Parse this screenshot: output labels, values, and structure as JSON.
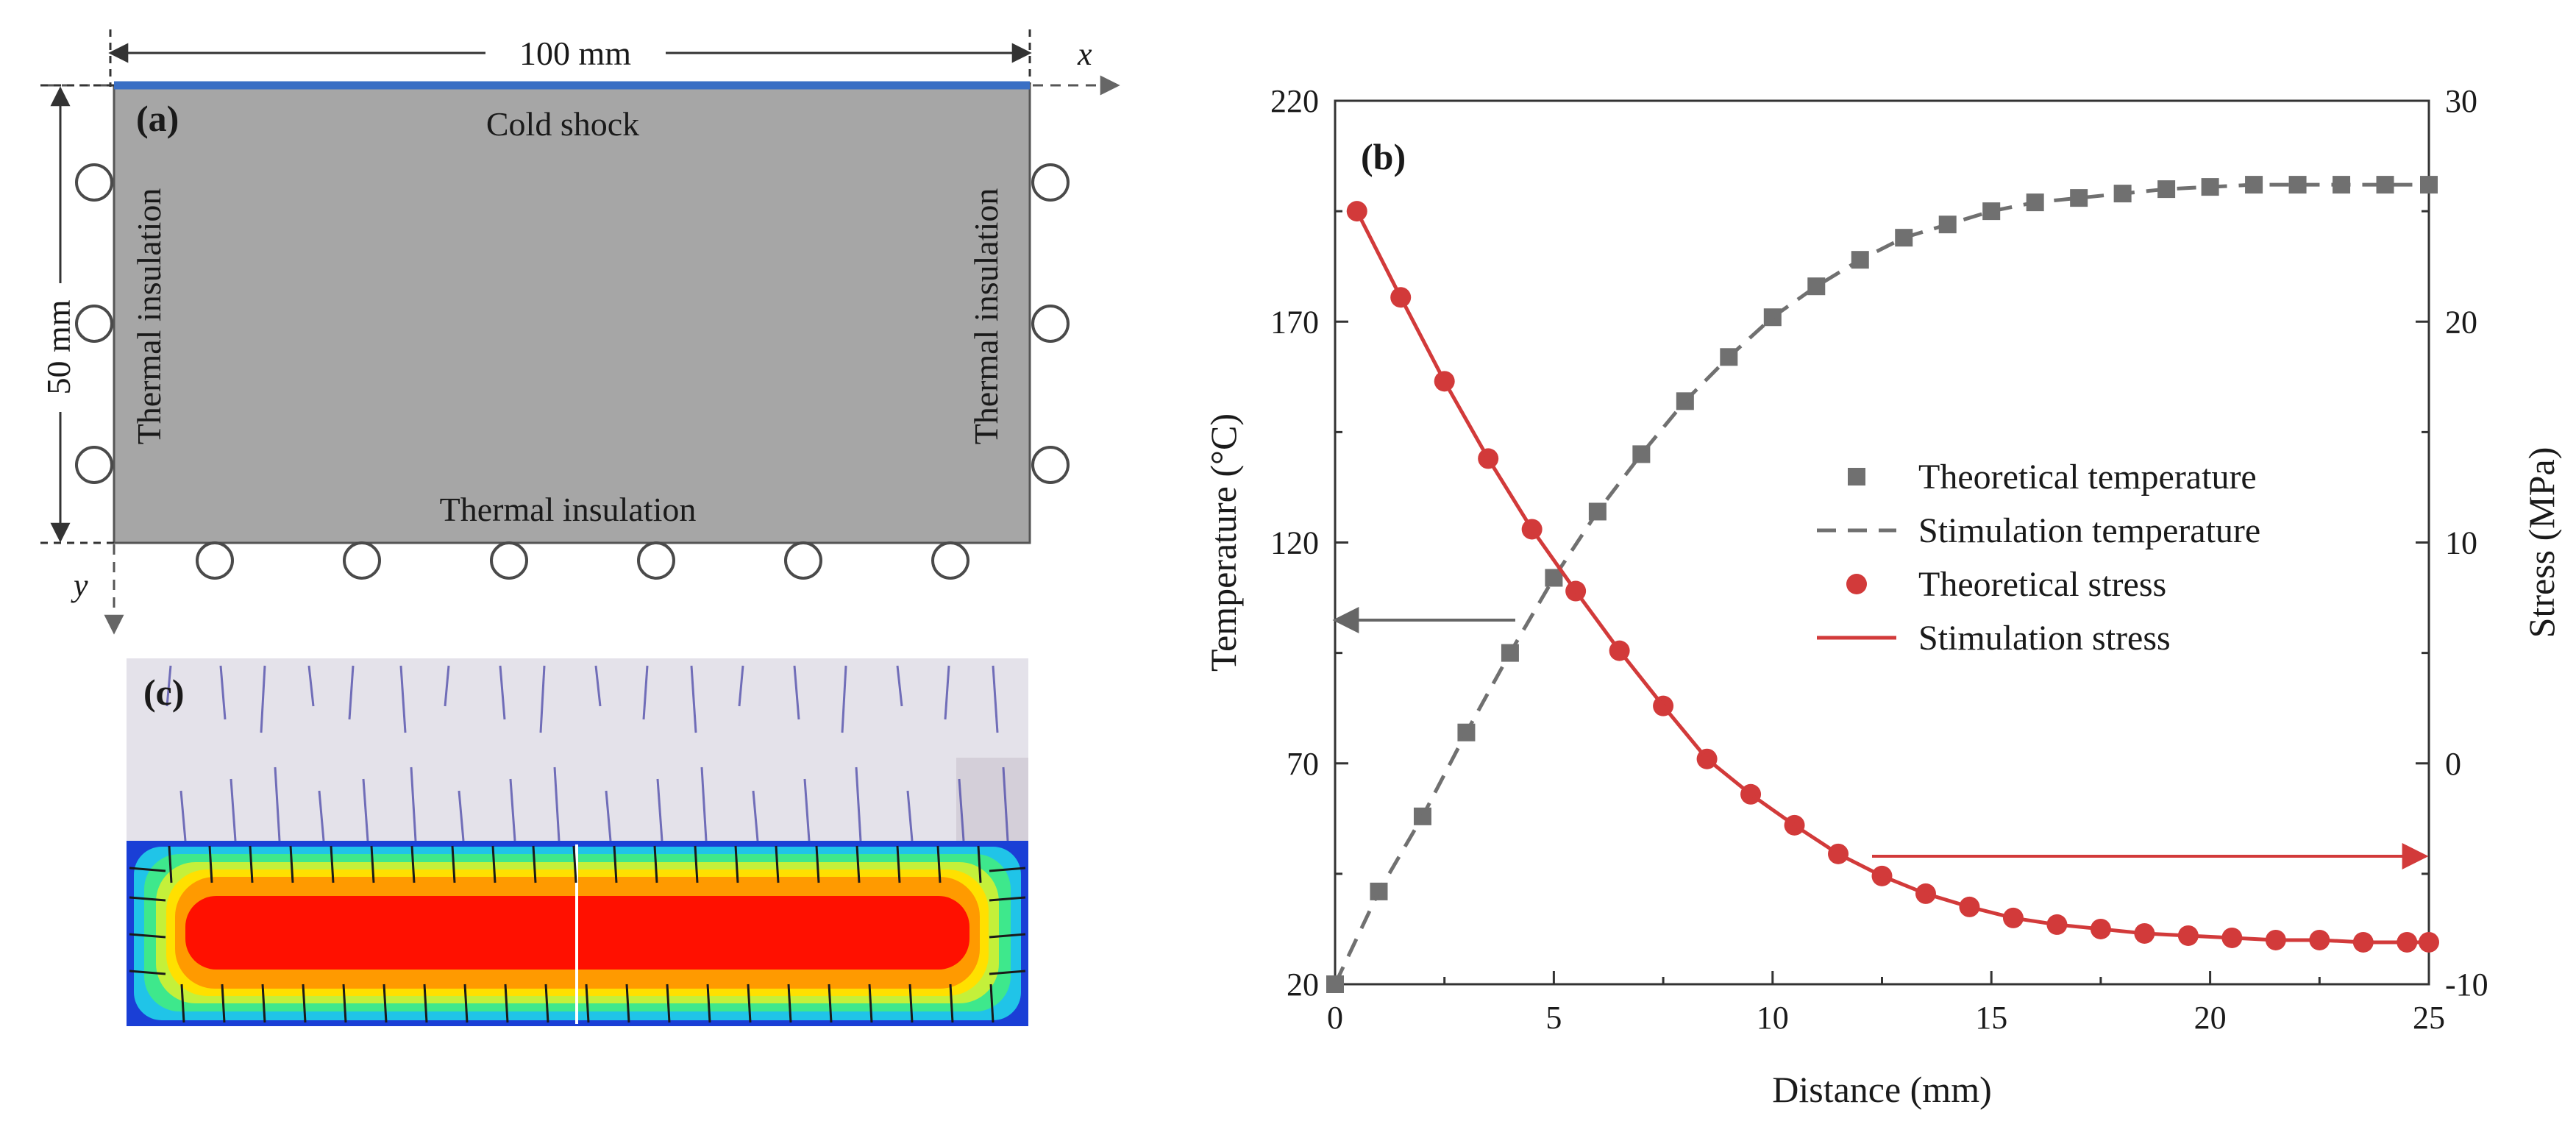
{
  "panel_a": {
    "label": "(a)",
    "width_label": "100 mm",
    "height_label": "50 mm",
    "x_axis": "x",
    "y_axis": "y",
    "top_boundary": "Cold shock",
    "left_boundary": "Thermal insulation",
    "right_boundary": "Thermal insulation",
    "bottom_boundary": "Thermal insulation",
    "cold_edge_color": "#3a6fc4",
    "body_color": "#a6a6a6"
  },
  "panel_c": {
    "label": "(c)"
  },
  "chart_data": {
    "type": "scatter",
    "panel_label": "(b)",
    "xlabel": "Distance (mm)",
    "ylabel_left": "Temperature (°C)",
    "ylabel_right": "Stress (MPa)",
    "xlim": [
      0,
      25
    ],
    "ylim_left": [
      20,
      220
    ],
    "ylim_right": [
      -10,
      30
    ],
    "x_ticks": [
      "0",
      "5",
      "10",
      "15",
      "20",
      "25"
    ],
    "y_left_ticks": [
      "20",
      "70",
      "120",
      "170",
      "220"
    ],
    "y_right_ticks": [
      "-10",
      "0",
      "10",
      "20",
      "30"
    ],
    "grid": false,
    "legend_position": "center-right",
    "series": [
      {
        "name": "Theoretical temperature",
        "axis": "left",
        "marker": "square",
        "color": "#707070",
        "x": [
          0,
          1,
          2,
          3,
          4,
          5,
          6,
          7,
          8,
          9,
          10,
          11,
          12,
          13,
          14,
          15,
          16,
          17,
          18,
          19,
          20,
          21,
          22,
          23,
          24,
          25
        ],
        "y": [
          20,
          41,
          58,
          77,
          95,
          112,
          127,
          140,
          152,
          162,
          171,
          178,
          184,
          189,
          192,
          195,
          197,
          198,
          199,
          200,
          200.5,
          201,
          201,
          201,
          201,
          201
        ]
      },
      {
        "name": "Stimulation temperature",
        "axis": "left",
        "line": "dashed",
        "color": "#707070",
        "x": [
          0,
          1,
          2,
          3,
          4,
          5,
          6,
          7,
          8,
          9,
          10,
          11,
          12,
          13,
          14,
          15,
          16,
          17,
          18,
          19,
          20,
          21,
          22,
          23,
          24,
          25
        ],
        "y": [
          20,
          41,
          58,
          77,
          95,
          112,
          127,
          140,
          152,
          162,
          171,
          178,
          184,
          189,
          192,
          195,
          197,
          198,
          199,
          200,
          200.5,
          201,
          201,
          201,
          201,
          201
        ]
      },
      {
        "name": "Theoretical stress",
        "axis": "right",
        "marker": "circle",
        "color": "#d23a3a",
        "x": [
          0.5,
          1.5,
          2.5,
          3.5,
          4.5,
          5.5,
          6.5,
          7.5,
          8.5,
          9.5,
          10.5,
          11.5,
          12.5,
          13.5,
          14.5,
          15.5,
          16.5,
          17.5,
          18.5,
          19.5,
          20.5,
          21.5,
          22.5,
          23.5,
          24.5,
          25
        ],
        "y": [
          25,
          21.1,
          17.3,
          13.8,
          10.6,
          7.8,
          5.1,
          2.6,
          0.2,
          -1.4,
          -2.8,
          -4.1,
          -5.1,
          -5.9,
          -6.5,
          -7.0,
          -7.3,
          -7.5,
          -7.7,
          -7.8,
          -7.9,
          -8.0,
          -8.0,
          -8.1,
          -8.1,
          -8.1
        ]
      },
      {
        "name": "Stimulation stress",
        "axis": "right",
        "line": "solid",
        "color": "#d23a3a",
        "x": [
          0.5,
          1.5,
          2.5,
          3.5,
          4.5,
          5.5,
          6.5,
          7.5,
          8.5,
          9.5,
          10.5,
          11.5,
          12.5,
          13.5,
          14.5,
          15.5,
          16.5,
          17.5,
          18.5,
          19.5,
          20.5,
          21.5,
          22.5,
          23.5,
          24.5,
          25
        ],
        "y": [
          25,
          21.1,
          17.3,
          13.8,
          10.6,
          7.8,
          5.1,
          2.6,
          0.2,
          -1.4,
          -2.8,
          -4.1,
          -5.1,
          -5.9,
          -6.5,
          -7.0,
          -7.3,
          -7.5,
          -7.7,
          -7.8,
          -7.9,
          -8.0,
          -8.0,
          -8.1,
          -8.1,
          -8.1
        ]
      }
    ]
  }
}
